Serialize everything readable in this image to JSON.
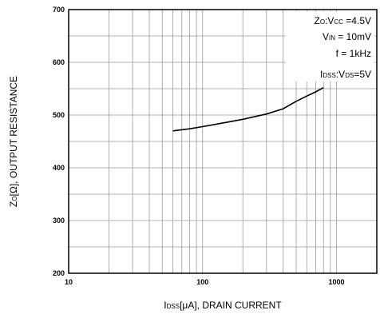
{
  "chart_data": {
    "type": "line",
    "xscale": "log",
    "xlim": [
      10,
      2000
    ],
    "ylim": [
      200,
      700
    ],
    "grid": true,
    "x_ticks": [
      10,
      100,
      1000
    ],
    "y_ticks": [
      200,
      300,
      400,
      500,
      600,
      700
    ],
    "xlabel": {
      "main": "I",
      "sub": "DSS",
      "rest": "[μA], DRAIN CURRENT"
    },
    "ylabel": {
      "main": "Z",
      "sub": "O",
      "rest": "[Ω], OUTPUT RESISTANCE"
    },
    "annotation_lines": [
      [
        {
          "t": "Z"
        },
        {
          "t": "O",
          "sub": true
        },
        {
          "t": ":V"
        },
        {
          "t": "CC",
          "sub": true
        },
        {
          "t": " =4.5V"
        }
      ],
      [
        {
          "t": "V"
        },
        {
          "t": "IN",
          "sub": true
        },
        {
          "t": " = 10mV"
        }
      ],
      [
        {
          "t": "f = 1kHz"
        }
      ],
      [
        {
          "t": "I"
        },
        {
          "t": "DSS",
          "sub": true
        },
        {
          "t": ":V"
        },
        {
          "t": "DS",
          "sub": true
        },
        {
          "t": "=5V"
        }
      ]
    ],
    "series": [
      {
        "color": "#000000",
        "points": [
          [
            60,
            470
          ],
          [
            80,
            474
          ],
          [
            100,
            478
          ],
          [
            150,
            486
          ],
          [
            200,
            492
          ],
          [
            300,
            502
          ],
          [
            400,
            512
          ],
          [
            500,
            526
          ],
          [
            600,
            536
          ],
          [
            700,
            544
          ],
          [
            800,
            552
          ]
        ]
      }
    ]
  }
}
